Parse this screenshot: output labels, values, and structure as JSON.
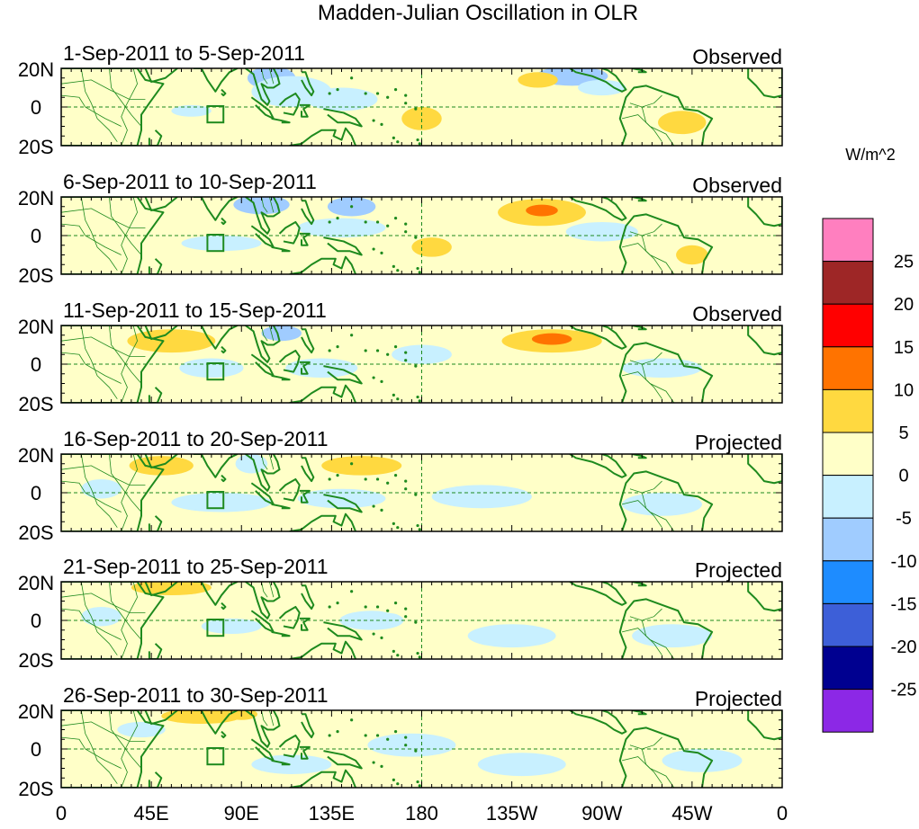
{
  "chart_data": {
    "type": "heatmap",
    "title": "Madden-Julian Oscillation in OLR",
    "units": "W/m^2",
    "y_ticks": [
      "20N",
      "0",
      "20S"
    ],
    "x_ticks": [
      "0",
      "45E",
      "90E",
      "135E",
      "180",
      "135W",
      "90W",
      "45W",
      "0"
    ],
    "x_tick_lon": [
      0,
      45,
      90,
      135,
      180,
      225,
      270,
      315,
      360
    ],
    "xlim": [
      0,
      360
    ],
    "ylim": [
      -20,
      20
    ],
    "colorbar": {
      "labels": [
        "25",
        "20",
        "15",
        "10",
        "5",
        "0",
        "-5",
        "-10",
        "-15",
        "-20",
        "-25"
      ],
      "colors": [
        "#ff7fbf",
        "#9e2626",
        "#ff0000",
        "#ff7300",
        "#ffd940",
        "#ffffc8",
        "#c8f0ff",
        "#a0ccff",
        "#1e8cff",
        "#3d5fd8",
        "#000090",
        "#8c28e6"
      ]
    },
    "panels": [
      {
        "period": "1-Sep-2011 to 5-Sep-2011",
        "kind": "Observed",
        "anomalies": [
          {
            "lon": 105,
            "lat": 15,
            "rlon": 12,
            "rlat": 6,
            "value": -8
          },
          {
            "lon": 115,
            "lat": 8,
            "rlon": 20,
            "rlat": 8,
            "value": -3
          },
          {
            "lon": 140,
            "lat": 4,
            "rlon": 18,
            "rlat": 6,
            "value": -4
          },
          {
            "lon": 255,
            "lat": 16,
            "rlon": 18,
            "rlat": 5,
            "value": -8
          },
          {
            "lon": 270,
            "lat": 10,
            "rlon": 12,
            "rlat": 4,
            "value": -4
          },
          {
            "lon": 210,
            "lat": 10,
            "rlon": 22,
            "rlat": 6,
            "value": 3
          },
          {
            "lon": 238,
            "lat": 14,
            "rlon": 10,
            "rlat": 4,
            "value": 6
          },
          {
            "lon": 180,
            "lat": -6,
            "rlon": 10,
            "rlat": 6,
            "value": 5
          },
          {
            "lon": 310,
            "lat": -8,
            "rlon": 12,
            "rlat": 6,
            "value": 6
          },
          {
            "lon": 60,
            "lat": 12,
            "rlon": 10,
            "rlat": 4,
            "value": 3
          },
          {
            "lon": 15,
            "lat": 5,
            "rlon": 10,
            "rlat": 5,
            "value": 3
          },
          {
            "lon": 35,
            "lat": -6,
            "rlon": 8,
            "rlat": 6,
            "value": 4
          },
          {
            "lon": 65,
            "lat": -2,
            "rlon": 10,
            "rlat": 3,
            "value": -4
          },
          {
            "lon": 355,
            "lat": 8,
            "rlon": 8,
            "rlat": 5,
            "value": 3
          }
        ]
      },
      {
        "period": "6-Sep-2011 to 10-Sep-2011",
        "kind": "Observed",
        "anomalies": [
          {
            "lon": 100,
            "lat": 16,
            "rlon": 14,
            "rlat": 5,
            "value": -8
          },
          {
            "lon": 145,
            "lat": 15,
            "rlon": 12,
            "rlat": 5,
            "value": -6
          },
          {
            "lon": 140,
            "lat": 4,
            "rlon": 22,
            "rlat": 5,
            "value": -3
          },
          {
            "lon": 80,
            "lat": -4,
            "rlon": 20,
            "rlat": 4,
            "value": -4
          },
          {
            "lon": 240,
            "lat": 12,
            "rlon": 22,
            "rlat": 7,
            "value": 6
          },
          {
            "lon": 240,
            "lat": 13,
            "rlon": 8,
            "rlat": 3,
            "value": 12
          },
          {
            "lon": 200,
            "lat": 10,
            "rlon": 14,
            "rlat": 5,
            "value": 3
          },
          {
            "lon": 185,
            "lat": -6,
            "rlon": 10,
            "rlat": 5,
            "value": 5
          },
          {
            "lon": 315,
            "lat": -10,
            "rlon": 8,
            "rlat": 5,
            "value": 6
          },
          {
            "lon": 270,
            "lat": 2,
            "rlon": 18,
            "rlat": 5,
            "value": -3
          },
          {
            "lon": 35,
            "lat": -6,
            "rlon": 8,
            "rlat": 6,
            "value": 4
          },
          {
            "lon": 15,
            "lat": 8,
            "rlon": 10,
            "rlat": 5,
            "value": 3
          },
          {
            "lon": 50,
            "lat": 14,
            "rlon": 10,
            "rlat": 4,
            "value": 3
          }
        ]
      },
      {
        "period": "11-Sep-2011 to 15-Sep-2011",
        "kind": "Observed",
        "anomalies": [
          {
            "lon": 55,
            "lat": 12,
            "rlon": 22,
            "rlat": 6,
            "value": 5
          },
          {
            "lon": 145,
            "lat": 12,
            "rlon": 20,
            "rlat": 6,
            "value": 4
          },
          {
            "lon": 110,
            "lat": 16,
            "rlon": 10,
            "rlat": 4,
            "value": -6
          },
          {
            "lon": 245,
            "lat": 12,
            "rlon": 25,
            "rlat": 6,
            "value": 6
          },
          {
            "lon": 245,
            "lat": 13,
            "rlon": 10,
            "rlat": 3,
            "value": 12
          },
          {
            "lon": 75,
            "lat": -2,
            "rlon": 16,
            "rlat": 5,
            "value": -4
          },
          {
            "lon": 130,
            "lat": -2,
            "rlon": 18,
            "rlat": 5,
            "value": -3
          },
          {
            "lon": 180,
            "lat": 5,
            "rlon": 15,
            "rlat": 5,
            "value": -3
          },
          {
            "lon": 20,
            "lat": -6,
            "rlon": 12,
            "rlat": 6,
            "value": 3
          },
          {
            "lon": 190,
            "lat": -6,
            "rlon": 20,
            "rlat": 6,
            "value": 3
          },
          {
            "lon": 300,
            "lat": -2,
            "rlon": 20,
            "rlat": 5,
            "value": -3
          },
          {
            "lon": 345,
            "lat": 12,
            "rlon": 10,
            "rlat": 4,
            "value": 3
          }
        ]
      },
      {
        "period": "16-Sep-2011 to 20-Sep-2011",
        "kind": "Projected",
        "anomalies": [
          {
            "lon": 50,
            "lat": 14,
            "rlon": 16,
            "rlat": 5,
            "value": 5
          },
          {
            "lon": 150,
            "lat": 14,
            "rlon": 20,
            "rlat": 5,
            "value": 5
          },
          {
            "lon": 255,
            "lat": 12,
            "rlon": 28,
            "rlat": 5,
            "value": 4
          },
          {
            "lon": 95,
            "lat": 15,
            "rlon": 8,
            "rlat": 5,
            "value": -4
          },
          {
            "lon": 80,
            "lat": -5,
            "rlon": 25,
            "rlat": 5,
            "value": -3
          },
          {
            "lon": 140,
            "lat": -3,
            "rlon": 22,
            "rlat": 5,
            "value": -3
          },
          {
            "lon": 210,
            "lat": -2,
            "rlon": 25,
            "rlat": 6,
            "value": -2
          },
          {
            "lon": 300,
            "lat": -6,
            "rlon": 20,
            "rlat": 6,
            "value": -3
          },
          {
            "lon": 20,
            "lat": 2,
            "rlon": 10,
            "rlat": 5,
            "value": -3
          },
          {
            "lon": 350,
            "lat": 12,
            "rlon": 8,
            "rlat": 4,
            "value": 3
          }
        ]
      },
      {
        "period": "21-Sep-2011 to 25-Sep-2011",
        "kind": "Projected",
        "anomalies": [
          {
            "lon": 55,
            "lat": 17,
            "rlon": 20,
            "rlat": 4,
            "value": 6
          },
          {
            "lon": 130,
            "lat": 16,
            "rlon": 18,
            "rlat": 4,
            "value": 3
          },
          {
            "lon": 85,
            "lat": -3,
            "rlon": 15,
            "rlat": 4,
            "value": -5
          },
          {
            "lon": 155,
            "lat": 0,
            "rlon": 16,
            "rlat": 5,
            "value": -3
          },
          {
            "lon": 225,
            "lat": -8,
            "rlon": 22,
            "rlat": 6,
            "value": -2
          },
          {
            "lon": 305,
            "lat": -8,
            "rlon": 20,
            "rlat": 6,
            "value": -3
          },
          {
            "lon": 20,
            "lat": 2,
            "rlon": 10,
            "rlat": 5,
            "value": -3
          },
          {
            "lon": 45,
            "lat": 0,
            "rlon": 8,
            "rlat": 4,
            "value": 3
          },
          {
            "lon": 175,
            "lat": 8,
            "rlon": 20,
            "rlat": 5,
            "value": 3
          },
          {
            "lon": 265,
            "lat": 10,
            "rlon": 25,
            "rlat": 5,
            "value": 2
          }
        ]
      },
      {
        "period": "26-Sep-2011 to 30-Sep-2011",
        "kind": "Projected",
        "anomalies": [
          {
            "lon": 70,
            "lat": 17,
            "rlon": 20,
            "rlat": 4,
            "value": 5
          },
          {
            "lon": 90,
            "lat": 18,
            "rlon": 8,
            "rlat": 3,
            "value": 9
          },
          {
            "lon": 45,
            "lat": 0,
            "rlon": 15,
            "rlat": 5,
            "value": 4
          },
          {
            "lon": 115,
            "lat": -8,
            "rlon": 20,
            "rlat": 5,
            "value": -4
          },
          {
            "lon": 40,
            "lat": 10,
            "rlon": 12,
            "rlat": 4,
            "value": -2
          },
          {
            "lon": 175,
            "lat": 2,
            "rlon": 22,
            "rlat": 6,
            "value": -3
          },
          {
            "lon": 230,
            "lat": -8,
            "rlon": 22,
            "rlat": 6,
            "value": -2
          },
          {
            "lon": 320,
            "lat": -6,
            "rlon": 20,
            "rlat": 6,
            "value": -2
          },
          {
            "lon": 270,
            "lat": 12,
            "rlon": 25,
            "rlat": 5,
            "value": 2
          }
        ]
      }
    ]
  }
}
